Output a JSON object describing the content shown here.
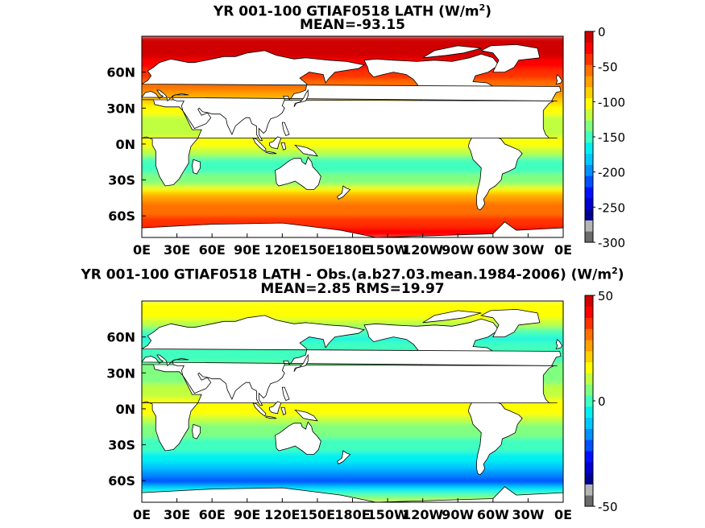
{
  "chart_data": [
    {
      "type": "heatmap",
      "title": "YR 001-100 GTIAF0518  LATH (W/m",
      "title_sup": "2",
      "title_end": ")",
      "subtitle": "MEAN=-93.15",
      "xticks": [
        "0E",
        "30E",
        "60E",
        "90E",
        "120E",
        "150E",
        "180E",
        "150W",
        "120W",
        "90W",
        "60W",
        "30W",
        "0E"
      ],
      "yticks": [
        "60N",
        "30N",
        "0N",
        "30S",
        "60S"
      ],
      "ytick_values": [
        60,
        30,
        0,
        -30,
        -60
      ],
      "xlim": [
        0,
        360
      ],
      "ylim": [
        -78,
        90
      ],
      "colorbar": {
        "ticks": [
          "0",
          "-50",
          "-100",
          "-150",
          "-200",
          "-250",
          "-300"
        ],
        "tick_values": [
          0,
          -50,
          -100,
          -150,
          -200,
          -250,
          -300
        ],
        "range": [
          -300,
          0
        ]
      },
      "zonal_profile": [
        {
          "lat": -75,
          "value": -20
        },
        {
          "lat": -60,
          "value": -55
        },
        {
          "lat": -45,
          "value": -75
        },
        {
          "lat": -30,
          "value": -150
        },
        {
          "lat": -15,
          "value": -170
        },
        {
          "lat": 0,
          "value": -110
        },
        {
          "lat": 15,
          "value": -140
        },
        {
          "lat": 30,
          "value": -110
        },
        {
          "lat": 45,
          "value": -70
        },
        {
          "lat": 60,
          "value": -40
        },
        {
          "lat": 75,
          "value": -15
        }
      ]
    },
    {
      "type": "heatmap",
      "title": "YR 001-100 GTIAF0518 LATH - Obs.(a.b27.03.mean.1984-2006) (W/m",
      "title_sup": "2",
      "title_end": ")",
      "subtitle": "MEAN=2.85 RMS=19.97",
      "xticks": [
        "0E",
        "30E",
        "60E",
        "90E",
        "120E",
        "150E",
        "180E",
        "150W",
        "120W",
        "90W",
        "60W",
        "30W",
        "0E"
      ],
      "yticks": [
        "60N",
        "30N",
        "0N",
        "30S",
        "60S"
      ],
      "ytick_values": [
        60,
        30,
        0,
        -30,
        -60
      ],
      "xlim": [
        0,
        360
      ],
      "ylim": [
        -78,
        90
      ],
      "colorbar": {
        "ticks": [
          "50",
          "0",
          "-50"
        ],
        "tick_values": [
          50,
          0,
          -50
        ],
        "range": [
          -50,
          50
        ]
      },
      "zonal_profile": [
        {
          "lat": -75,
          "value": 5
        },
        {
          "lat": -60,
          "value": -30
        },
        {
          "lat": -45,
          "value": -15
        },
        {
          "lat": -30,
          "value": -5
        },
        {
          "lat": -15,
          "value": 0
        },
        {
          "lat": 0,
          "value": 15
        },
        {
          "lat": 15,
          "value": 5
        },
        {
          "lat": 30,
          "value": 0
        },
        {
          "lat": 45,
          "value": -5
        },
        {
          "lat": 60,
          "value": -10
        },
        {
          "lat": 75,
          "value": 10
        }
      ]
    }
  ],
  "colormap": [
    "#6b6b6b",
    "#b4b4b4",
    "#000090",
    "#0000d0",
    "#0010ff",
    "#0050ff",
    "#0090ff",
    "#00c8ff",
    "#00f0f0",
    "#40ffbf",
    "#80ff80",
    "#c0ff40",
    "#ffff00",
    "#ffd000",
    "#ffa000",
    "#ff7000",
    "#ff3000",
    "#ff0000",
    "#d00000"
  ],
  "land_color": "#ffffff",
  "coast_color": "#000000"
}
